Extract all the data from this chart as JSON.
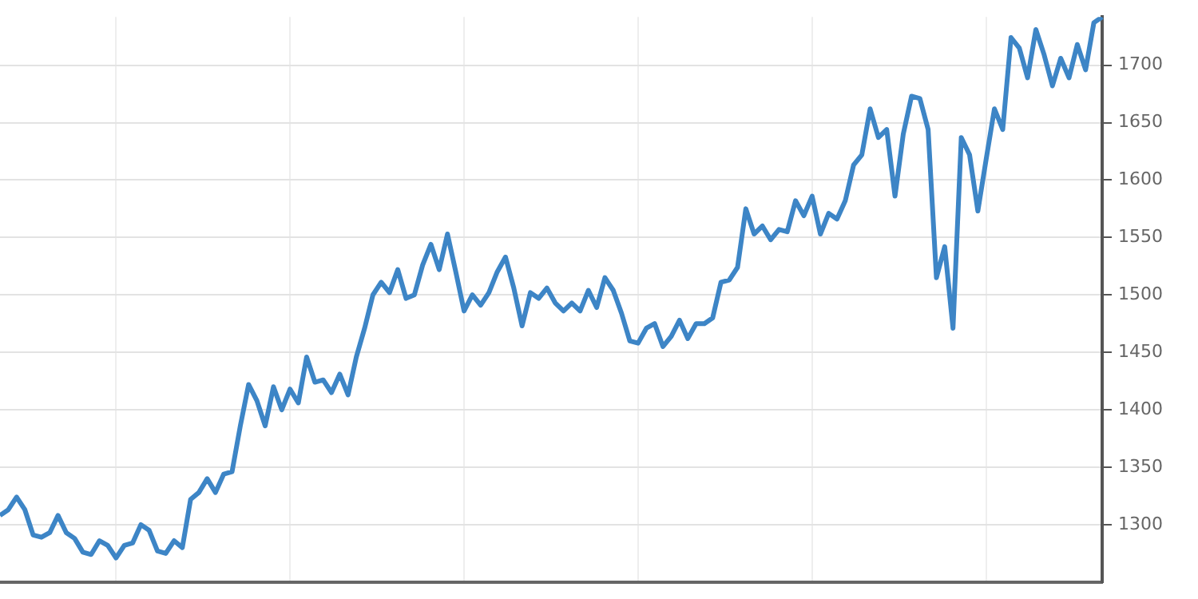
{
  "chart_data": {
    "type": "line",
    "categories": [
      null,
      null,
      null,
      null,
      null,
      null,
      null,
      null,
      null,
      null,
      null,
      null,
      null,
      null,
      null,
      null,
      null,
      null,
      null,
      null,
      null,
      null,
      null,
      null,
      null,
      null,
      null,
      null,
      null,
      null,
      null,
      null,
      null,
      null,
      null,
      null,
      null,
      null,
      null,
      null,
      null,
      null,
      null,
      null,
      null,
      null,
      null,
      null,
      null,
      null,
      null,
      null,
      null,
      null,
      null,
      null,
      null,
      null,
      null,
      null,
      null,
      null,
      null,
      null,
      null,
      null,
      null,
      null,
      null,
      null,
      null,
      null,
      null,
      null,
      null,
      null,
      null,
      null,
      null,
      null,
      null,
      null,
      null,
      null,
      null,
      null,
      null,
      null,
      null,
      null,
      null,
      null,
      null,
      null,
      null,
      null,
      null,
      null,
      null,
      null,
      null,
      null,
      null,
      null,
      null,
      null,
      null,
      null,
      null,
      null,
      null,
      null,
      null,
      null,
      null,
      null,
      null,
      null,
      null,
      null,
      null,
      null,
      null,
      null,
      null,
      null,
      null,
      null,
      null,
      null,
      null,
      null,
      null,
      null
    ],
    "series": [
      {
        "color": "#3d85c6",
        "values": [
          1308,
          1313,
          1324,
          1313,
          1291,
          1289,
          1293,
          1308,
          1293,
          1288,
          1276,
          1274,
          1286,
          1282,
          1271,
          1282,
          1284,
          1300,
          1295,
          1277,
          1275,
          1286,
          1280,
          1322,
          1328,
          1340,
          1328,
          1344,
          1346,
          1386,
          1422,
          1408,
          1386,
          1420,
          1400,
          1418,
          1406,
          1446,
          1424,
          1426,
          1415,
          1431,
          1413,
          1446,
          1471,
          1500,
          1511,
          1502,
          1522,
          1497,
          1500,
          1526,
          1544,
          1522,
          1553,
          1520,
          1486,
          1500,
          1491,
          1502,
          1520,
          1533,
          1506,
          1473,
          1502,
          1497,
          1506,
          1493,
          1486,
          1493,
          1486,
          1504,
          1489,
          1515,
          1504,
          1484,
          1460,
          1458,
          1471,
          1475,
          1455,
          1464,
          1478,
          1462,
          1475,
          1475,
          1480,
          1511,
          1513,
          1524,
          1575,
          1553,
          1560,
          1548,
          1557,
          1555,
          1582,
          1569,
          1586,
          1553,
          1571,
          1566,
          1582,
          1613,
          1622,
          1662,
          1637,
          1644,
          1586,
          1640,
          1673,
          1671,
          1644,
          1515,
          1542,
          1471,
          1637,
          1622,
          1573,
          1618,
          1662,
          1644,
          1724,
          1715,
          1689,
          1731,
          1709,
          1682,
          1706,
          1689,
          1718,
          1696,
          1737,
          1742
        ]
      }
    ],
    "ylim": [
      1250,
      1742
    ],
    "yticks": [
      1300,
      1350,
      1400,
      1450,
      1500,
      1550,
      1600,
      1650,
      1700
    ],
    "tick_labels": "y",
    "grid": true,
    "legend": false,
    "marker": "none",
    "line_style": "solid"
  }
}
